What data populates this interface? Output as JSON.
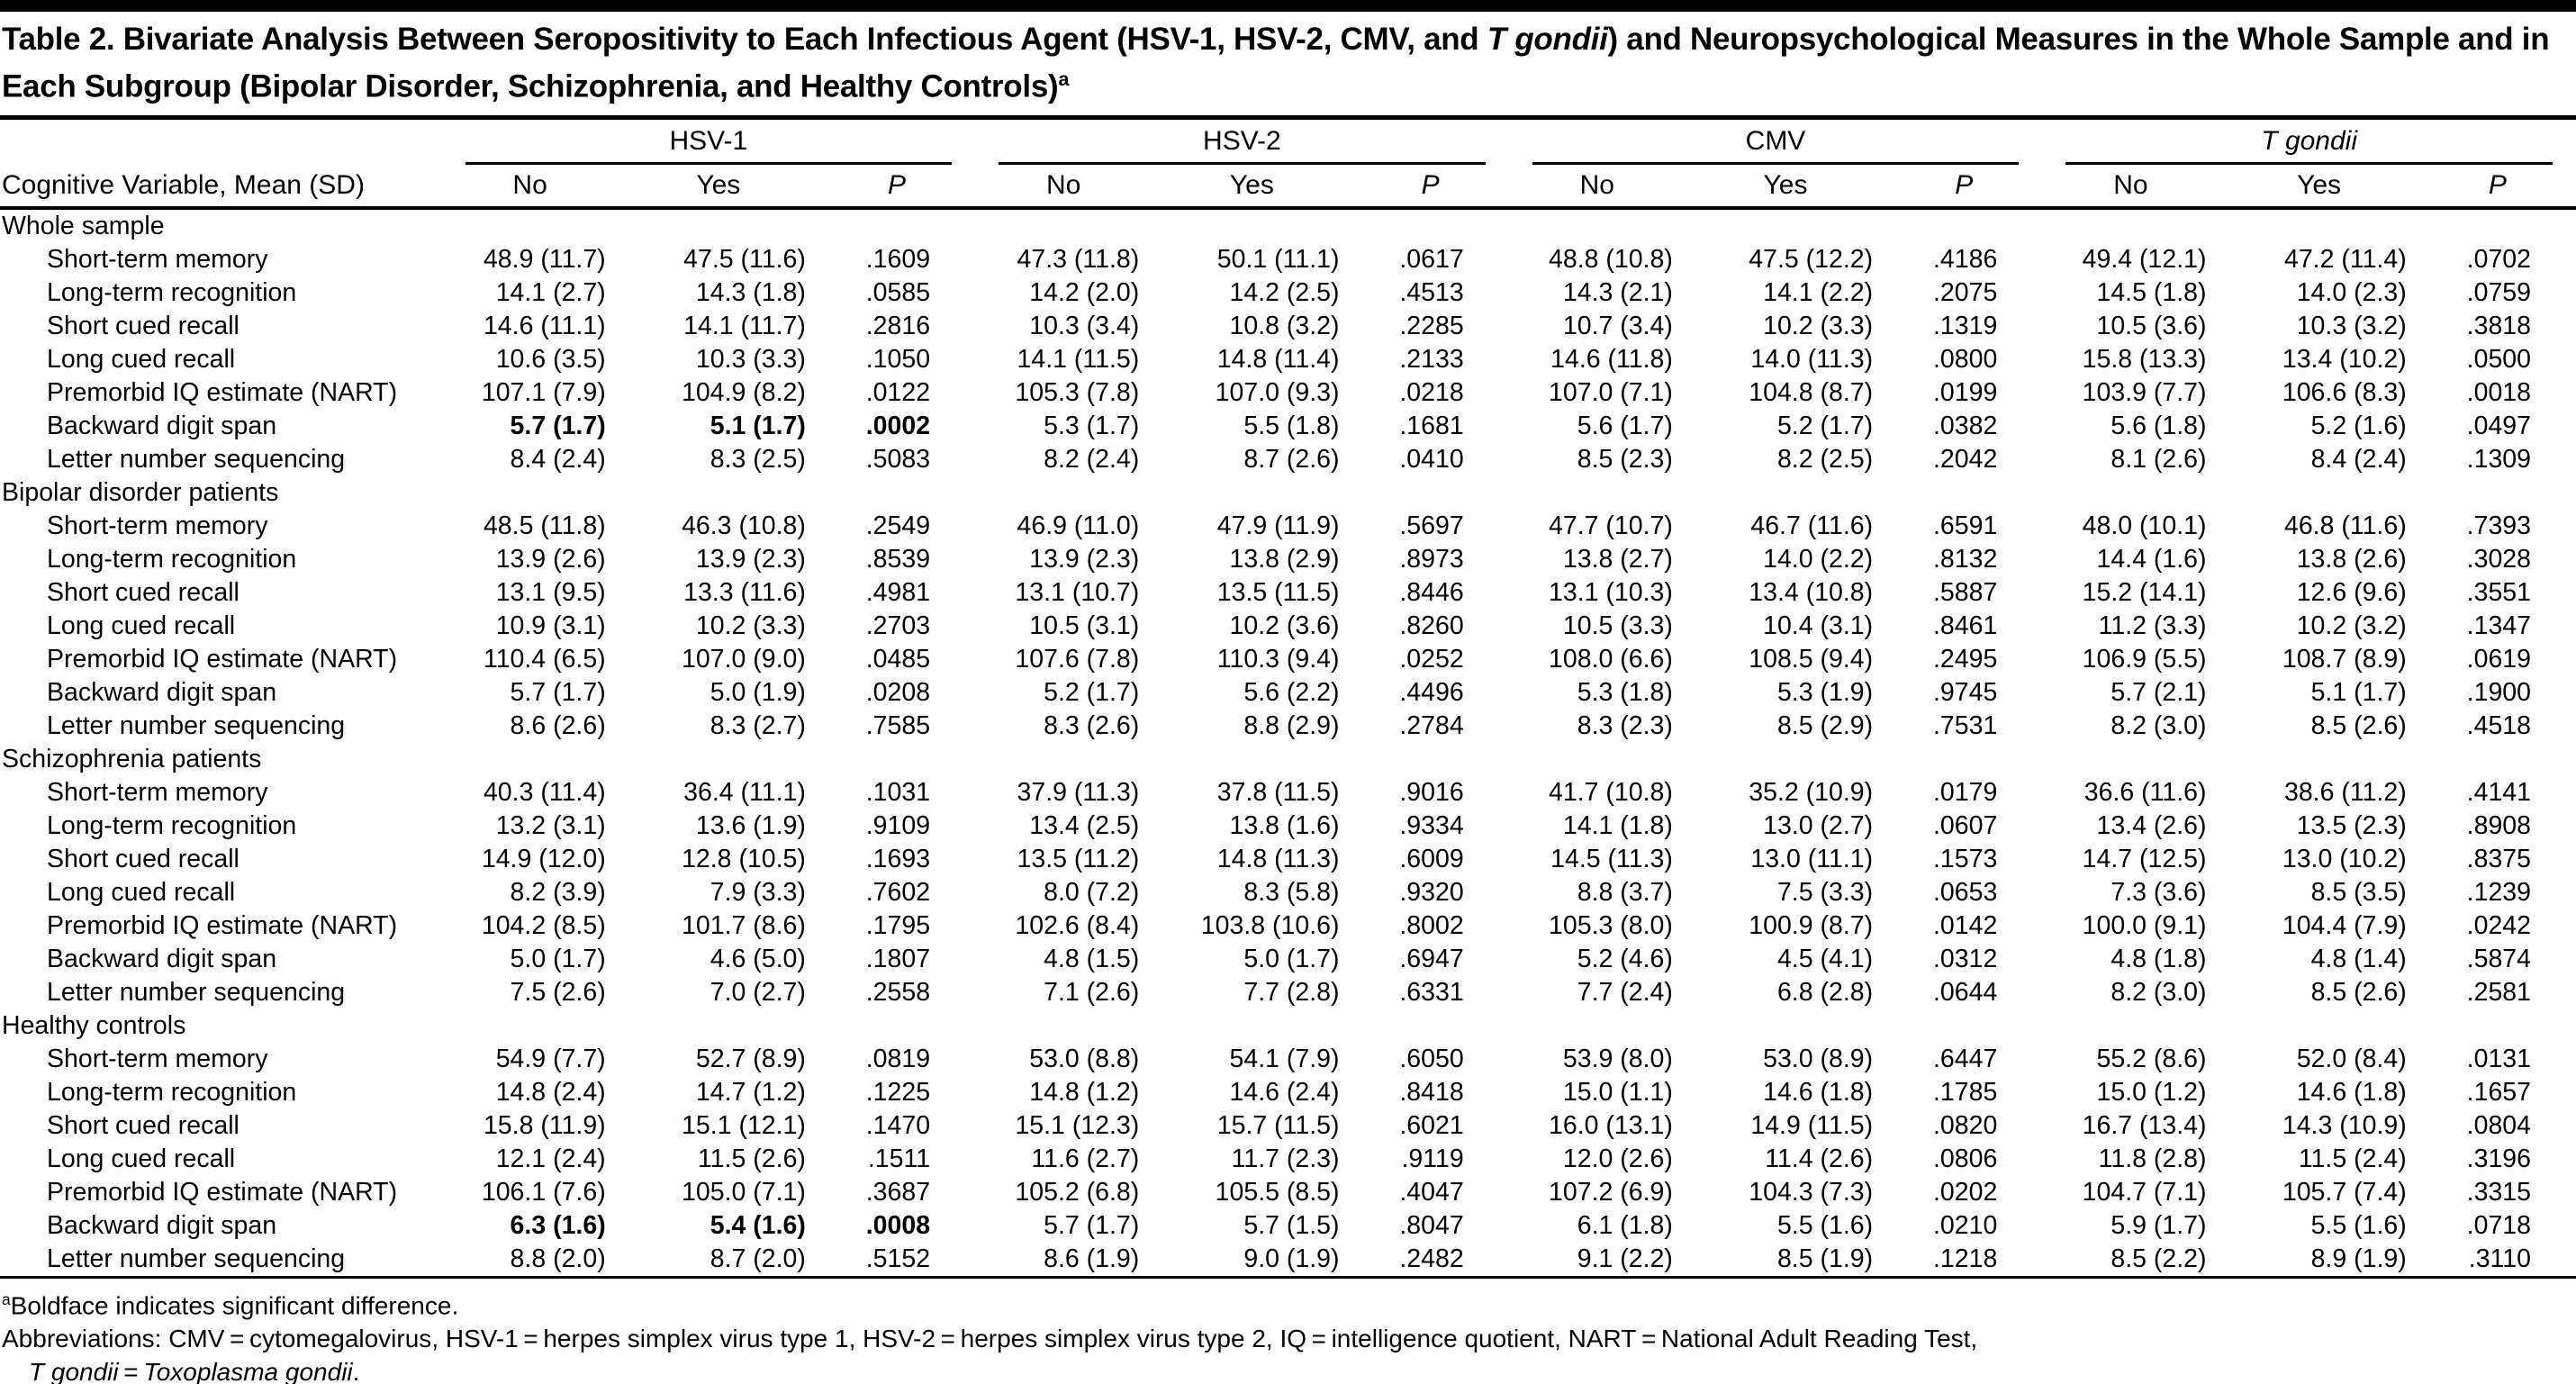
{
  "colors": {
    "background": "#ffffff",
    "text": "#000000",
    "rule": "#000000"
  },
  "title": {
    "prefix": "Table 2. Bivariate Analysis Between Seropositivity to Each Infectious Agent (HSV-1, HSV-2, CMV, and ",
    "italic": "T gondii",
    "suffix": ") and Neuropsychological Measures in the Whole Sample and in Each Subgroup (Bipolar Disorder, Schizophrenia, and Healthy Controls)",
    "superscript": "a"
  },
  "table": {
    "header": {
      "row_label": "Cognitive Variable, Mean (SD)",
      "groups": [
        {
          "label": "HSV-1",
          "italic": false
        },
        {
          "label": "HSV-2",
          "italic": false
        },
        {
          "label": "CMV",
          "italic": false
        },
        {
          "label": "T gondii",
          "italic": true
        }
      ],
      "sub_columns": [
        "No",
        "Yes",
        "P"
      ]
    },
    "sections": [
      {
        "label": "Whole sample",
        "rows": [
          {
            "label": "Short-term memory",
            "values": [
              "48.9 (11.7)",
              "47.5 (11.6)",
              ".1609",
              "47.3 (11.8)",
              "50.1 (11.1)",
              ".0617",
              "48.8 (10.8)",
              "47.5 (12.2)",
              ".4186",
              "49.4 (12.1)",
              "47.2 (11.4)",
              ".0702"
            ],
            "bold": []
          },
          {
            "label": "Long-term recognition",
            "values": [
              "14.1 (2.7)",
              "14.3 (1.8)",
              ".0585",
              "14.2 (2.0)",
              "14.2 (2.5)",
              ".4513",
              "14.3 (2.1)",
              "14.1 (2.2)",
              ".2075",
              "14.5 (1.8)",
              "14.0 (2.3)",
              ".0759"
            ],
            "bold": []
          },
          {
            "label": "Short cued recall",
            "values": [
              "14.6 (11.1)",
              "14.1 (11.7)",
              ".2816",
              "10.3 (3.4)",
              "10.8 (3.2)",
              ".2285",
              "10.7 (3.4)",
              "10.2 (3.3)",
              ".1319",
              "10.5 (3.6)",
              "10.3 (3.2)",
              ".3818"
            ],
            "bold": []
          },
          {
            "label": "Long cued recall",
            "values": [
              "10.6 (3.5)",
              "10.3 (3.3)",
              ".1050",
              "14.1 (11.5)",
              "14.8 (11.4)",
              ".2133",
              "14.6 (11.8)",
              "14.0 (11.3)",
              ".0800",
              "15.8 (13.3)",
              "13.4 (10.2)",
              ".0500"
            ],
            "bold": []
          },
          {
            "label": "Premorbid IQ estimate (NART)",
            "values": [
              "107.1 (7.9)",
              "104.9 (8.2)",
              ".0122",
              "105.3 (7.8)",
              "107.0 (9.3)",
              ".0218",
              "107.0 (7.1)",
              "104.8 (8.7)",
              ".0199",
              "103.9 (7.7)",
              "106.6 (8.3)",
              ".0018"
            ],
            "bold": []
          },
          {
            "label": "Backward digit span",
            "values": [
              "5.7 (1.7)",
              "5.1 (1.7)",
              ".0002",
              "5.3 (1.7)",
              "5.5 (1.8)",
              ".1681",
              "5.6 (1.7)",
              "5.2 (1.7)",
              ".0382",
              "5.6 (1.8)",
              "5.2 (1.6)",
              ".0497"
            ],
            "bold": [
              0,
              1,
              2
            ]
          },
          {
            "label": "Letter number sequencing",
            "values": [
              "8.4 (2.4)",
              "8.3 (2.5)",
              ".5083",
              "8.2 (2.4)",
              "8.7 (2.6)",
              ".0410",
              "8.5 (2.3)",
              "8.2 (2.5)",
              ".2042",
              "8.1 (2.6)",
              "8.4 (2.4)",
              ".1309"
            ],
            "bold": []
          }
        ]
      },
      {
        "label": "Bipolar disorder patients",
        "rows": [
          {
            "label": "Short-term memory",
            "values": [
              "48.5 (11.8)",
              "46.3 (10.8)",
              ".2549",
              "46.9 (11.0)",
              "47.9 (11.9)",
              ".5697",
              "47.7 (10.7)",
              "46.7 (11.6)",
              ".6591",
              "48.0 (10.1)",
              "46.8 (11.6)",
              ".7393"
            ],
            "bold": []
          },
          {
            "label": "Long-term recognition",
            "values": [
              "13.9 (2.6)",
              "13.9 (2.3)",
              ".8539",
              "13.9 (2.3)",
              "13.8 (2.9)",
              ".8973",
              "13.8 (2.7)",
              "14.0 (2.2)",
              ".8132",
              "14.4 (1.6)",
              "13.8 (2.6)",
              ".3028"
            ],
            "bold": []
          },
          {
            "label": "Short cued recall",
            "values": [
              "13.1 (9.5)",
              "13.3 (11.6)",
              ".4981",
              "13.1 (10.7)",
              "13.5 (11.5)",
              ".8446",
              "13.1 (10.3)",
              "13.4 (10.8)",
              ".5887",
              "15.2 (14.1)",
              "12.6 (9.6)",
              ".3551"
            ],
            "bold": []
          },
          {
            "label": "Long cued recall",
            "values": [
              "10.9 (3.1)",
              "10.2 (3.3)",
              ".2703",
              "10.5 (3.1)",
              "10.2 (3.6)",
              ".8260",
              "10.5 (3.3)",
              "10.4 (3.1)",
              ".8461",
              "11.2 (3.3)",
              "10.2 (3.2)",
              ".1347"
            ],
            "bold": []
          },
          {
            "label": "Premorbid IQ estimate (NART)",
            "values": [
              "110.4 (6.5)",
              "107.0 (9.0)",
              ".0485",
              "107.6 (7.8)",
              "110.3 (9.4)",
              ".0252",
              "108.0 (6.6)",
              "108.5 (9.4)",
              ".2495",
              "106.9 (5.5)",
              "108.7 (8.9)",
              ".0619"
            ],
            "bold": []
          },
          {
            "label": "Backward digit span",
            "values": [
              "5.7 (1.7)",
              "5.0 (1.9)",
              ".0208",
              "5.2 (1.7)",
              "5.6 (2.2)",
              ".4496",
              "5.3 (1.8)",
              "5.3 (1.9)",
              ".9745",
              "5.7 (2.1)",
              "5.1 (1.7)",
              ".1900"
            ],
            "bold": []
          },
          {
            "label": "Letter number sequencing",
            "values": [
              "8.6 (2.6)",
              "8.3 (2.7)",
              ".7585",
              "8.3 (2.6)",
              "8.8 (2.9)",
              ".2784",
              "8.3 (2.3)",
              "8.5 (2.9)",
              ".7531",
              "8.2 (3.0)",
              "8.5 (2.6)",
              ".4518"
            ],
            "bold": []
          }
        ]
      },
      {
        "label": "Schizophrenia patients",
        "rows": [
          {
            "label": "Short-term memory",
            "values": [
              "40.3 (11.4)",
              "36.4 (11.1)",
              ".1031",
              "37.9 (11.3)",
              "37.8 (11.5)",
              ".9016",
              "41.7 (10.8)",
              "35.2 (10.9)",
              ".0179",
              "36.6 (11.6)",
              "38.6 (11.2)",
              ".4141"
            ],
            "bold": []
          },
          {
            "label": "Long-term recognition",
            "values": [
              "13.2 (3.1)",
              "13.6 (1.9)",
              ".9109",
              "13.4 (2.5)",
              "13.8 (1.6)",
              ".9334",
              "14.1 (1.8)",
              "13.0 (2.7)",
              ".0607",
              "13.4 (2.6)",
              "13.5 (2.3)",
              ".8908"
            ],
            "bold": []
          },
          {
            "label": "Short cued recall",
            "values": [
              "14.9 (12.0)",
              "12.8 (10.5)",
              ".1693",
              "13.5 (11.2)",
              "14.8 (11.3)",
              ".6009",
              "14.5 (11.3)",
              "13.0 (11.1)",
              ".1573",
              "14.7 (12.5)",
              "13.0 (10.2)",
              ".8375"
            ],
            "bold": []
          },
          {
            "label": "Long cued recall",
            "values": [
              "8.2 (3.9)",
              "7.9 (3.3)",
              ".7602",
              "8.0 (7.2)",
              "8.3 (5.8)",
              ".9320",
              "8.8 (3.7)",
              "7.5 (3.3)",
              ".0653",
              "7.3 (3.6)",
              "8.5 (3.5)",
              ".1239"
            ],
            "bold": []
          },
          {
            "label": "Premorbid IQ estimate (NART)",
            "values": [
              "104.2 (8.5)",
              "101.7 (8.6)",
              ".1795",
              "102.6 (8.4)",
              "103.8 (10.6)",
              ".8002",
              "105.3 (8.0)",
              "100.9 (8.7)",
              ".0142",
              "100.0 (9.1)",
              "104.4 (7.9)",
              ".0242"
            ],
            "bold": []
          },
          {
            "label": "Backward digit span",
            "values": [
              "5.0 (1.7)",
              "4.6 (5.0)",
              ".1807",
              "4.8 (1.5)",
              "5.0 (1.7)",
              ".6947",
              "5.2 (4.6)",
              "4.5 (4.1)",
              ".0312",
              "4.8 (1.8)",
              "4.8 (1.4)",
              ".5874"
            ],
            "bold": []
          },
          {
            "label": "Letter number sequencing",
            "values": [
              "7.5 (2.6)",
              "7.0 (2.7)",
              ".2558",
              "7.1 (2.6)",
              "7.7 (2.8)",
              ".6331",
              "7.7 (2.4)",
              "6.8 (2.8)",
              ".0644",
              "8.2 (3.0)",
              "8.5 (2.6)",
              ".2581"
            ],
            "bold": []
          }
        ]
      },
      {
        "label": "Healthy controls",
        "rows": [
          {
            "label": "Short-term memory",
            "values": [
              "54.9 (7.7)",
              "52.7 (8.9)",
              ".0819",
              "53.0 (8.8)",
              "54.1 (7.9)",
              ".6050",
              "53.9 (8.0)",
              "53.0 (8.9)",
              ".6447",
              "55.2 (8.6)",
              "52.0 (8.4)",
              ".0131"
            ],
            "bold": []
          },
          {
            "label": "Long-term recognition",
            "values": [
              "14.8 (2.4)",
              "14.7 (1.2)",
              ".1225",
              "14.8 (1.2)",
              "14.6 (2.4)",
              ".8418",
              "15.0 (1.1)",
              "14.6 (1.8)",
              ".1785",
              "15.0 (1.2)",
              "14.6 (1.8)",
              ".1657"
            ],
            "bold": []
          },
          {
            "label": "Short cued recall",
            "values": [
              "15.8 (11.9)",
              "15.1 (12.1)",
              ".1470",
              "15.1 (12.3)",
              "15.7 (11.5)",
              ".6021",
              "16.0 (13.1)",
              "14.9 (11.5)",
              ".0820",
              "16.7 (13.4)",
              "14.3 (10.9)",
              ".0804"
            ],
            "bold": []
          },
          {
            "label": "Long cued recall",
            "values": [
              "12.1 (2.4)",
              "11.5 (2.6)",
              ".1511",
              "11.6 (2.7)",
              "11.7 (2.3)",
              ".9119",
              "12.0 (2.6)",
              "11.4 (2.6)",
              ".0806",
              "11.8 (2.8)",
              "11.5 (2.4)",
              ".3196"
            ],
            "bold": []
          },
          {
            "label": "Premorbid IQ estimate (NART)",
            "values": [
              "106.1 (7.6)",
              "105.0 (7.1)",
              ".3687",
              "105.2 (6.8)",
              "105.5 (8.5)",
              ".4047",
              "107.2 (6.9)",
              "104.3 (7.3)",
              ".0202",
              "104.7 (7.1)",
              "105.7 (7.4)",
              ".3315"
            ],
            "bold": []
          },
          {
            "label": "Backward digit span",
            "values": [
              "6.3 (1.6)",
              "5.4 (1.6)",
              ".0008",
              "5.7 (1.7)",
              "5.7 (1.5)",
              ".8047",
              "6.1 (1.8)",
              "5.5 (1.6)",
              ".0210",
              "5.9 (1.7)",
              "5.5 (1.6)",
              ".0718"
            ],
            "bold": [
              0,
              1,
              2
            ]
          },
          {
            "label": "Letter number sequencing",
            "values": [
              "8.8 (2.0)",
              "8.7 (2.0)",
              ".5152",
              "8.6 (1.9)",
              "9.0 (1.9)",
              ".2482",
              "9.1 (2.2)",
              "8.5 (1.9)",
              ".1218",
              "8.5 (2.2)",
              "8.9 (1.9)",
              ".3110"
            ],
            "bold": []
          }
        ]
      }
    ]
  },
  "footnotes": {
    "note_a_sup": "a",
    "note_a": "Boldface indicates significant difference.",
    "abbreviations": "Abbreviations: CMV = cytomegalovirus, HSV-1 = herpes simplex virus type 1, HSV-2 = herpes simplex virus type 2, IQ = intelligence quotient, NART = National Adult Reading Test,",
    "cont_italic1": "T gondii",
    "cont_mid": " = ",
    "cont_italic2": "Toxoplasma gondii",
    "cont_end": "."
  }
}
